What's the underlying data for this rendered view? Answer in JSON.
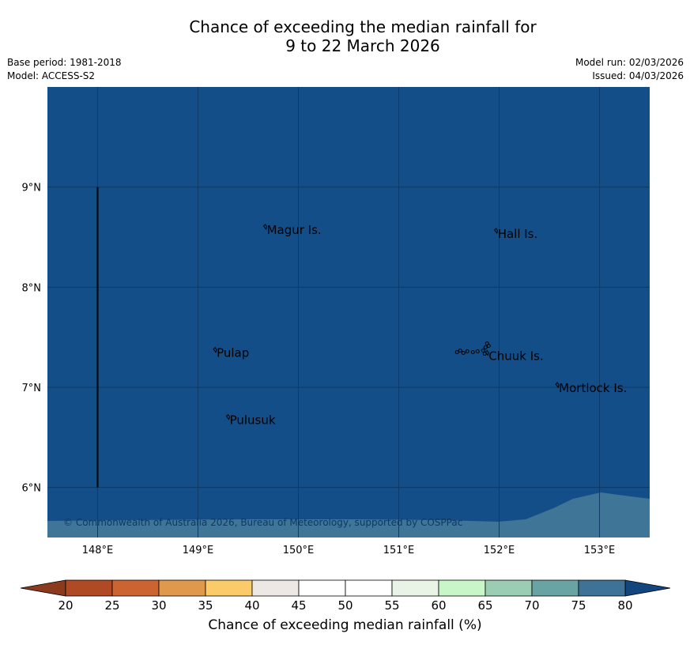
{
  "header": {
    "title_line1": "Chance of exceeding the median rainfall for",
    "title_line2": "9 to 22 March 2026",
    "base_period": "Base period: 1981-2018",
    "model": "Model: ACCESS-S2",
    "model_run": "Model run: 02/03/2026",
    "issued": "Issued: 04/03/2026"
  },
  "map": {
    "lon_range": [
      147.5,
      153.5
    ],
    "lat_range": [
      5.5,
      10.0
    ],
    "x_ticks": [
      "148°E",
      "149°E",
      "150°E",
      "151°E",
      "152°E",
      "153°E"
    ],
    "x_tick_values": [
      148,
      149,
      150,
      151,
      152,
      153
    ],
    "y_ticks": [
      "9°N",
      "8°N",
      "7°N",
      "6°N"
    ],
    "y_tick_values": [
      9,
      8,
      7,
      6
    ],
    "field_color": "#134e88",
    "southern_band_color": "#3f7597",
    "grid_color": "#0d3a66",
    "copyright": "© Commonwealth of Australia 2026, Bureau of Meteorology, supported by COSPPac",
    "places": [
      {
        "name": "Magur Is.",
        "lon": 149.67,
        "lat": 8.58
      },
      {
        "name": "Hall Is.",
        "lon": 151.97,
        "lat": 8.54
      },
      {
        "name": "Pulap",
        "lon": 149.17,
        "lat": 7.35
      },
      {
        "name": "Chuuk Is.",
        "lon": 151.88,
        "lat": 7.32
      },
      {
        "name": "Mortlock Is.",
        "lon": 152.58,
        "lat": 7.0
      },
      {
        "name": "Pulusuk",
        "lon": 149.3,
        "lat": 6.68
      }
    ],
    "boundary_line": {
      "lon": 148.0,
      "lat_from": 6.0,
      "lat_to": 9.0
    }
  },
  "legend": {
    "label": "Chance of exceeding median rainfall (%)",
    "ticks": [
      "20",
      "25",
      "30",
      "35",
      "40",
      "45",
      "50",
      "55",
      "60",
      "65",
      "70",
      "75",
      "80"
    ],
    "under_color": "#8b3a1e",
    "over_color": "#13467f",
    "bins": [
      "#b04a24",
      "#cc6431",
      "#e0984c",
      "#fbcb6a",
      "#ede8e3",
      "#ffffff",
      "#ffffff",
      "#e9f4e7",
      "#c9f6c8",
      "#9bcdb4",
      "#6aa3a4",
      "#3e7297"
    ]
  }
}
